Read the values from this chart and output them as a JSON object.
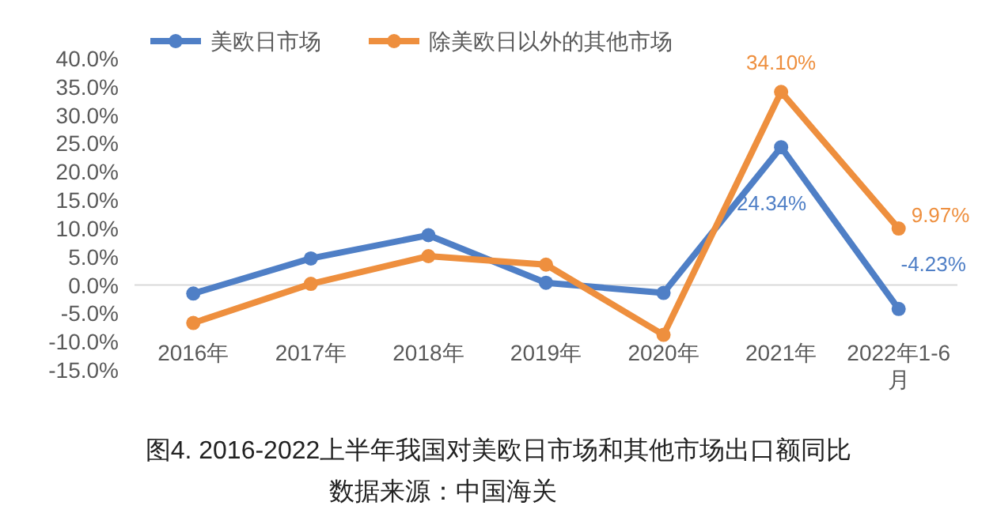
{
  "chart_data": {
    "type": "line",
    "title": "图4. 2016-2022上半年我国对美欧日市场和其他市场出口额同比",
    "annotations": [
      "数据来源：中国海关"
    ],
    "categories": [
      "2016年",
      "2017年",
      "2018年",
      "2019年",
      "2020年",
      "2021年",
      "2022年1-6月"
    ],
    "series": [
      {
        "name": "美欧日市场",
        "color": "#4f7fc6",
        "values": [
          -1.5,
          4.7,
          8.8,
          0.4,
          -1.4,
          24.34,
          -4.23
        ],
        "value_labels": [
          null,
          null,
          null,
          null,
          null,
          "24.34%",
          "-4.23%"
        ]
      },
      {
        "name": "除美欧日以外的其他市场",
        "color": "#ee8f3e",
        "values": [
          -6.7,
          0.2,
          5.1,
          3.6,
          -8.8,
          34.1,
          9.97
        ],
        "value_labels": [
          null,
          null,
          null,
          null,
          null,
          "34.10%",
          "9.97%"
        ]
      }
    ],
    "ylim": [
      -15,
      40
    ],
    "yticks": [
      {
        "value": 40,
        "label": "40.0%"
      },
      {
        "value": 35,
        "label": "35.0%"
      },
      {
        "value": 30,
        "label": "30.0%"
      },
      {
        "value": 25,
        "label": "25.0%"
      },
      {
        "value": 20,
        "label": "20.0%"
      },
      {
        "value": 15,
        "label": "15.0%"
      },
      {
        "value": 10,
        "label": "10.0%"
      },
      {
        "value": 5,
        "label": "5.0%"
      },
      {
        "value": 0,
        "label": "0.0%"
      },
      {
        "value": -5,
        "label": "-5.0%"
      },
      {
        "value": -10,
        "label": "-10.0%"
      },
      {
        "value": -15,
        "label": "-15.0%"
      }
    ],
    "legend": "top",
    "marker": "circle",
    "line_style": "solid"
  }
}
